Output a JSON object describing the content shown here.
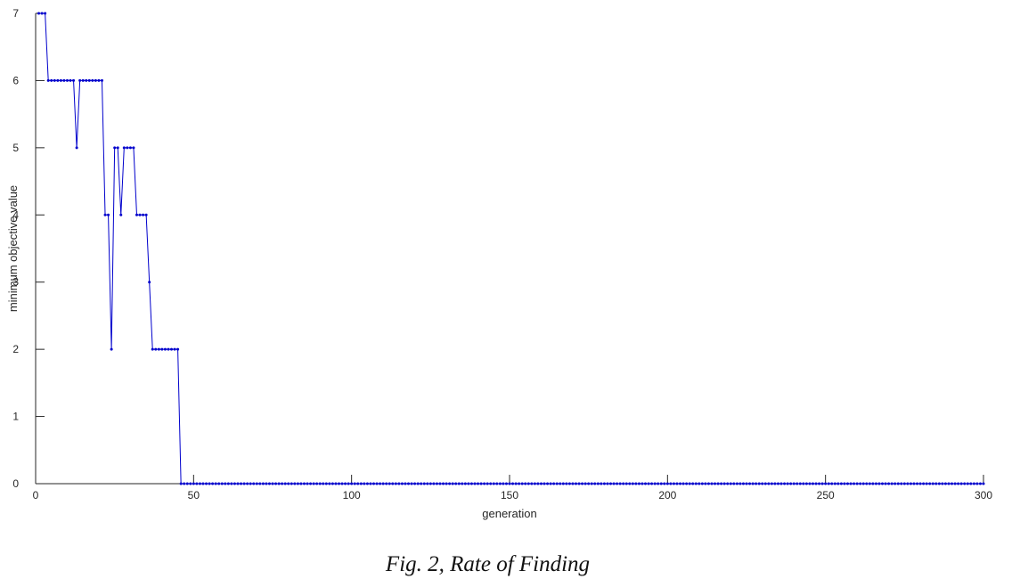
{
  "chart_data": {
    "type": "line",
    "title": "",
    "xlabel": "generation",
    "ylabel": "minimum objective value",
    "xlim": [
      0,
      300
    ],
    "ylim": [
      0,
      7
    ],
    "xticks": [
      0,
      50,
      100,
      150,
      200,
      250,
      300
    ],
    "yticks": [
      0,
      1,
      2,
      3,
      4,
      5,
      6,
      7
    ],
    "grid": false,
    "marker": "dot",
    "color": "#0000cc",
    "series": [
      {
        "segments": [
          {
            "from": 1,
            "to": 3,
            "value": 7
          },
          {
            "from": 4,
            "to": 12,
            "value": 6
          },
          {
            "from": 13,
            "to": 13,
            "value": 5
          },
          {
            "from": 14,
            "to": 21,
            "value": 6
          },
          {
            "from": 22,
            "to": 23,
            "value": 4
          },
          {
            "from": 24,
            "to": 24,
            "value": 2
          },
          {
            "from": 25,
            "to": 26,
            "value": 5
          },
          {
            "from": 27,
            "to": 27,
            "value": 4
          },
          {
            "from": 28,
            "to": 31,
            "value": 5
          },
          {
            "from": 32,
            "to": 35,
            "value": 4
          },
          {
            "from": 36,
            "to": 36,
            "value": 3
          },
          {
            "from": 37,
            "to": 45,
            "value": 2
          },
          {
            "from": 46,
            "to": 300,
            "value": 0
          }
        ]
      }
    ]
  },
  "caption": "Fig. 2, Rate of Finding"
}
